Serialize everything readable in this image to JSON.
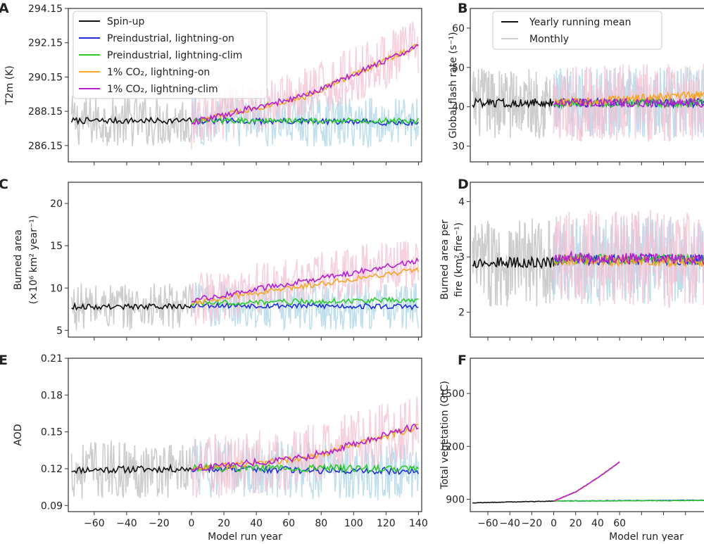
{
  "figure": {
    "colors": {
      "spinup": "#111111",
      "monthly_spinup": "#c8c8c8",
      "pre_on": "#1f2fd6",
      "pre_clim": "#2ecb2e",
      "co2_on": "#f5a623",
      "co2_clim": "#b51fd1",
      "pre_band": "#a9d4e6",
      "co2_band": "#f4bcd0"
    }
  },
  "chart_data": [
    {
      "panel": "A",
      "type": "line",
      "ylabel": "T2m (K)",
      "xlabel": "",
      "xlim": [
        -76,
        142
      ],
      "ylim": [
        285.2,
        294.15
      ],
      "yticks": [
        "286.15",
        "288.15",
        "290.15",
        "292.15",
        "294.15"
      ],
      "ytick_values": [
        286.15,
        288.15,
        290.15,
        292.15,
        294.15
      ],
      "xticks": [],
      "spinup": {
        "x": [
          -74,
          0
        ],
        "y": [
          287.6,
          287.6
        ]
      },
      "series": [
        {
          "name": "Preindustrial, lightning-on",
          "key": "pre_on",
          "x": [
            0,
            140
          ],
          "y": [
            287.6,
            287.5
          ]
        },
        {
          "name": "Preindustrial, lightning-clim",
          "key": "pre_clim",
          "x": [
            0,
            140
          ],
          "y": [
            287.6,
            287.6
          ]
        },
        {
          "name": "1% CO₂, lightning-on",
          "key": "co2_on",
          "x": [
            0,
            70,
            140
          ],
          "y": [
            287.5,
            289.0,
            292.0
          ]
        },
        {
          "name": "1% CO₂, lightning-clim",
          "key": "co2_clim",
          "x": [
            0,
            70,
            140
          ],
          "y": [
            287.5,
            289.05,
            291.95
          ]
        }
      ],
      "legend": {
        "position": "upper-left",
        "entries": [
          "Spin-up",
          "Preindustrial, lightning-on",
          "Preindustrial, lightning-clim",
          "1% CO₂, lightning-on",
          "1% CO₂, lightning-clim"
        ]
      },
      "monthly_spread": 1.5
    },
    {
      "panel": "B",
      "type": "line",
      "ylabel": "Global flash rate (s⁻¹)",
      "xlabel": "",
      "xlim": [
        -76,
        142
      ],
      "ylim": [
        26,
        65
      ],
      "yticks": [
        "30",
        "40",
        "50",
        "60"
      ],
      "ytick_values": [
        30,
        40,
        50,
        60
      ],
      "xticks": [],
      "spinup": {
        "x": [
          -74,
          0
        ],
        "y": [
          41,
          41
        ]
      },
      "series": [
        {
          "name": "Preindustrial, lightning-on",
          "key": "pre_on",
          "x": [
            0,
            140
          ],
          "y": [
            41,
            41
          ]
        },
        {
          "name": "Preindustrial, lightning-clim",
          "key": "pre_clim",
          "x": [
            0,
            140
          ],
          "y": [
            41,
            41
          ]
        },
        {
          "name": "1% CO₂, lightning-on",
          "key": "co2_on",
          "x": [
            0,
            140
          ],
          "y": [
            41,
            43
          ]
        },
        {
          "name": "1% CO₂, lightning-clim",
          "key": "co2_clim",
          "x": [
            0,
            140
          ],
          "y": [
            41,
            41
          ]
        }
      ],
      "legend": {
        "position": "upper-left",
        "entries": [
          "Yearly running mean",
          "Monthly"
        ]
      },
      "monthly_spread": 9
    },
    {
      "panel": "C",
      "type": "line",
      "ylabel": "Burned area",
      "ylabel2": "(×10⁶ km² year⁻¹)",
      "xlabel": "",
      "xlim": [
        -76,
        142
      ],
      "ylim": [
        4.2,
        22.5
      ],
      "yticks": [
        "5",
        "10",
        "15",
        "20"
      ],
      "ytick_values": [
        5,
        10,
        15,
        20
      ],
      "xticks": [],
      "spinup": {
        "x": [
          -74,
          0
        ],
        "y": [
          7.8,
          7.8
        ]
      },
      "series": [
        {
          "name": "Preindustrial, lightning-on",
          "key": "pre_on",
          "x": [
            0,
            140
          ],
          "y": [
            8.0,
            7.8
          ]
        },
        {
          "name": "Preindustrial, lightning-clim",
          "key": "pre_clim",
          "x": [
            0,
            140
          ],
          "y": [
            8.2,
            8.6
          ]
        },
        {
          "name": "1% CO₂, lightning-on",
          "key": "co2_on",
          "x": [
            0,
            140
          ],
          "y": [
            8.3,
            12.2
          ]
        },
        {
          "name": "1% CO₂, lightning-clim",
          "key": "co2_clim",
          "x": [
            0,
            140
          ],
          "y": [
            8.5,
            13.2
          ]
        }
      ],
      "legend": null,
      "monthly_spread": 2.8
    },
    {
      "panel": "D",
      "type": "line",
      "ylabel": "Burned area per",
      "ylabel2": "fire (km² fire⁻¹)",
      "xlabel": "",
      "xlim": [
        -76,
        142
      ],
      "ylim": [
        1.55,
        4.35
      ],
      "yticks": [
        "2",
        "3",
        "4"
      ],
      "ytick_values": [
        2,
        3,
        4
      ],
      "xticks": [],
      "spinup": {
        "x": [
          -74,
          0
        ],
        "y": [
          2.9,
          2.9
        ]
      },
      "series": [
        {
          "name": "Preindustrial, lightning-on",
          "key": "pre_on",
          "x": [
            0,
            140
          ],
          "y": [
            2.95,
            2.95
          ]
        },
        {
          "name": "Preindustrial, lightning-clim",
          "key": "pre_clim",
          "x": [
            0,
            140
          ],
          "y": [
            2.95,
            2.95
          ]
        },
        {
          "name": "1% CO₂, lightning-on",
          "key": "co2_on",
          "x": [
            0,
            140
          ],
          "y": [
            2.95,
            2.9
          ]
        },
        {
          "name": "1% CO₂, lightning-clim",
          "key": "co2_clim",
          "x": [
            0,
            140
          ],
          "y": [
            3.0,
            2.95
          ]
        }
      ],
      "legend": null,
      "monthly_spread": 0.8
    },
    {
      "panel": "E",
      "type": "line",
      "ylabel": "AOD",
      "xlabel": "Model run year",
      "xlim": [
        -76,
        142
      ],
      "ylim": [
        0.085,
        0.21
      ],
      "yticks": [
        "0.09",
        "0.12",
        "0.15",
        "0.18",
        "0.21"
      ],
      "ytick_values": [
        0.09,
        0.12,
        0.15,
        0.18,
        0.21
      ],
      "xticks": [
        "−60",
        "−40",
        "−20",
        "0",
        "20",
        "40",
        "60",
        "80",
        "100",
        "120",
        "140"
      ],
      "xtick_values": [
        -60,
        -40,
        -20,
        0,
        20,
        40,
        60,
        80,
        100,
        120,
        140
      ],
      "spinup": {
        "x": [
          -74,
          0
        ],
        "y": [
          0.119,
          0.12
        ]
      },
      "series": [
        {
          "name": "Preindustrial, lightning-on",
          "key": "pre_on",
          "x": [
            0,
            140
          ],
          "y": [
            0.12,
            0.118
          ]
        },
        {
          "name": "Preindustrial, lightning-clim",
          "key": "pre_clim",
          "x": [
            0,
            140
          ],
          "y": [
            0.121,
            0.12
          ]
        },
        {
          "name": "1% CO₂, lightning-on",
          "key": "co2_on",
          "x": [
            0,
            70,
            140
          ],
          "y": [
            0.12,
            0.128,
            0.154
          ]
        },
        {
          "name": "1% CO₂, lightning-clim",
          "key": "co2_clim",
          "x": [
            0,
            70,
            140
          ],
          "y": [
            0.12,
            0.129,
            0.155
          ]
        }
      ],
      "legend": null,
      "monthly_spread": 0.024
    },
    {
      "panel": "F",
      "type": "line",
      "ylabel": "Total vegetation (GtC)",
      "xlabel": "Model run year",
      "xlim": [
        -76,
        142
      ],
      "ylim": [
        830,
        1700
      ],
      "yticks": [
        "900",
        "1200",
        "1500"
      ],
      "ytick_values": [
        900,
        1200,
        1500
      ],
      "xticks": [
        "−60",
        "−40",
        "−20",
        "0",
        "20",
        "40",
        "60"
      ],
      "xtick_values": [
        -60,
        -40,
        -20,
        0,
        20,
        40,
        60
      ],
      "spinup": {
        "x": [
          -74,
          0
        ],
        "y": [
          880,
          890
        ]
      },
      "series": [
        {
          "name": "Preindustrial, lightning-on",
          "key": "pre_on",
          "x": [
            0,
            140
          ],
          "y": [
            890,
            895
          ]
        },
        {
          "name": "Preindustrial, lightning-clim",
          "key": "pre_clim",
          "x": [
            0,
            140
          ],
          "y": [
            890,
            893
          ]
        },
        {
          "name": "1% CO₂, lightning-on",
          "key": "co2_on",
          "x": [
            0,
            20,
            40,
            60
          ],
          "y": [
            890,
            940,
            1020,
            1110
          ]
        },
        {
          "name": "1% CO₂, lightning-clim",
          "key": "co2_clim",
          "x": [
            0,
            20,
            40,
            60
          ],
          "y": [
            890,
            942,
            1022,
            1112
          ]
        }
      ],
      "legend": null,
      "monthly_spread": 0
    }
  ]
}
